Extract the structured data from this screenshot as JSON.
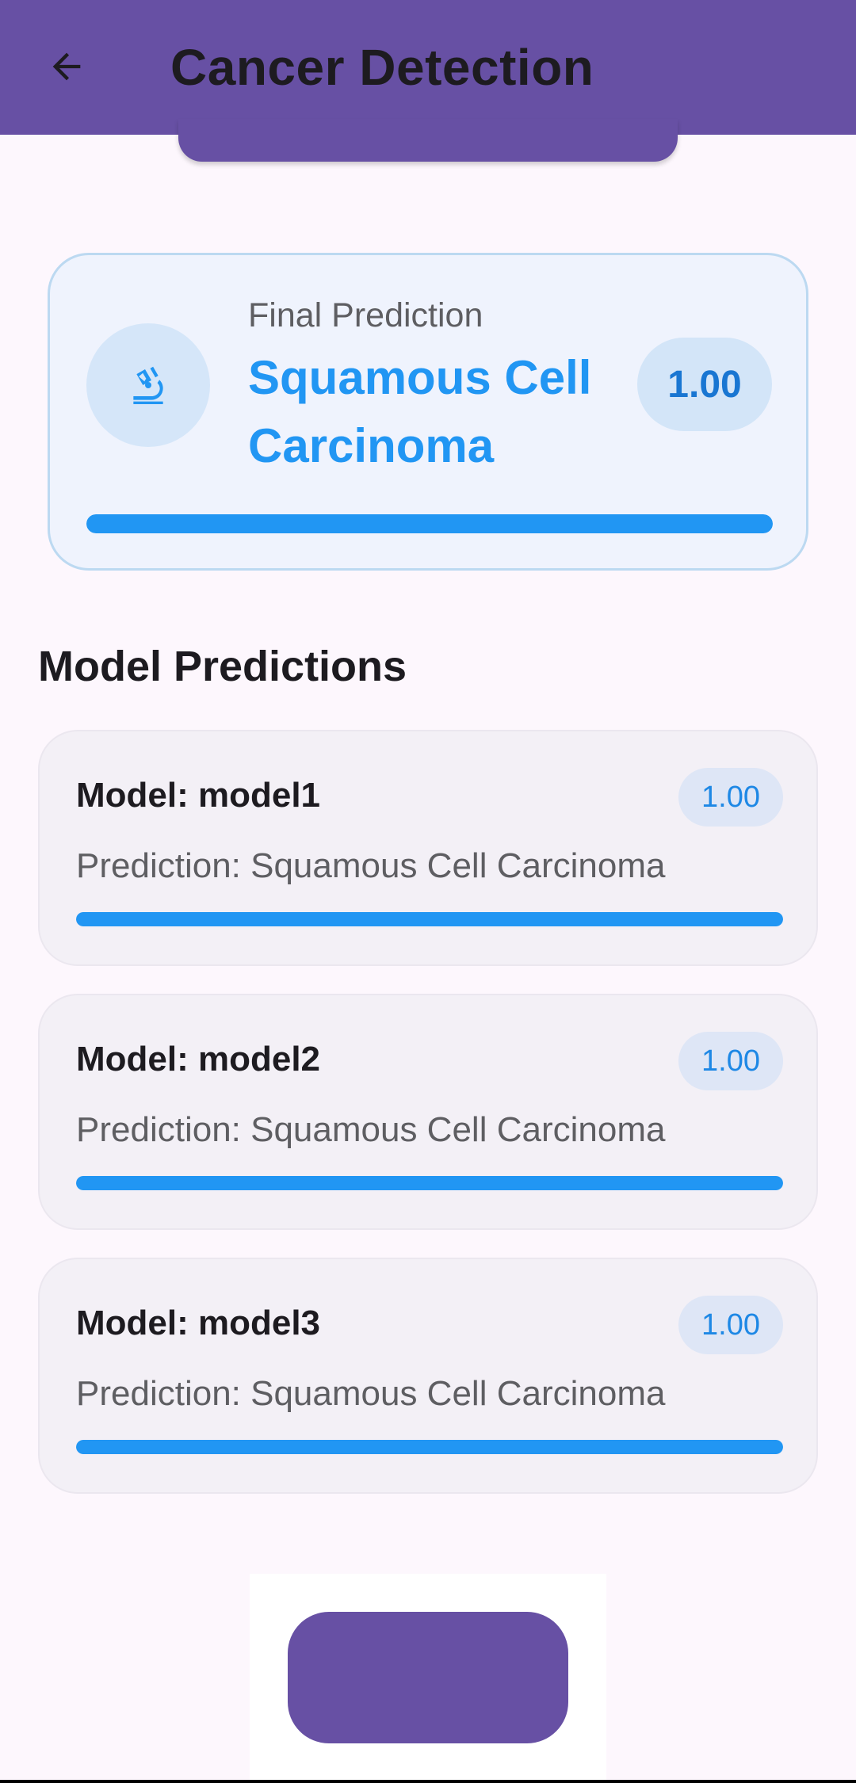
{
  "appbar": {
    "title": "Cancer Detection",
    "back_icon": "arrow-left-icon",
    "color": "#6750a4"
  },
  "final_prediction": {
    "label": "Final Prediction",
    "value": "Squamous Cell Carcinoma",
    "score": "1.00",
    "confidence": 1.0,
    "icon": "microscope-icon",
    "accent": "#2196f3"
  },
  "models_section": {
    "title": "Model Predictions"
  },
  "models": [
    {
      "name": "Model: model1",
      "prediction": "Prediction: Squamous Cell Carcinoma",
      "score": "1.00",
      "confidence": 1.0
    },
    {
      "name": "Model: model2",
      "prediction": "Prediction: Squamous Cell Carcinoma",
      "score": "1.00",
      "confidence": 1.0
    },
    {
      "name": "Model: model3",
      "prediction": "Prediction: Squamous Cell Carcinoma",
      "score": "1.00",
      "confidence": 1.0
    }
  ]
}
